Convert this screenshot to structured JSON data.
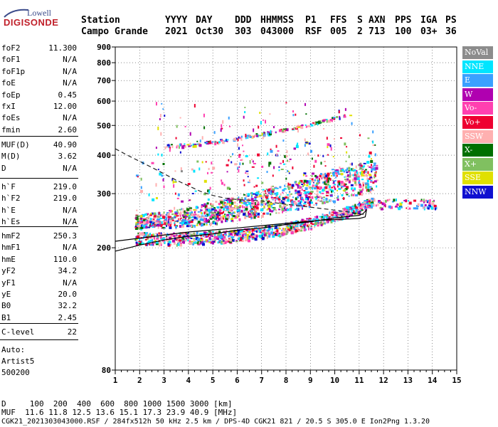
{
  "logo": {
    "line1": "Lowell",
    "line2": "DIGISONDE"
  },
  "header": {
    "station_label": "Station",
    "station_name": "Campo Grande",
    "columns": [
      {
        "label": "YYYY",
        "value": "2021"
      },
      {
        "label": "DAY",
        "value": "Oct30"
      },
      {
        "label": "DDD",
        "value": "303"
      },
      {
        "label": "HHMMSS",
        "value": "043000"
      },
      {
        "label": "P1",
        "value": "RSF"
      },
      {
        "label": "FFS",
        "value": "005"
      },
      {
        "label": "S",
        "value": "2"
      },
      {
        "label": "AXN",
        "value": "713"
      },
      {
        "label": "PPS",
        "value": "100"
      },
      {
        "label": "IGA",
        "value": "03+"
      },
      {
        "label": "PS",
        "value": "36"
      }
    ]
  },
  "params": {
    "group1": [
      {
        "name": "foF2",
        "value": "11.300"
      },
      {
        "name": "foF1",
        "value": "N/A"
      },
      {
        "name": "foF1p",
        "value": "N/A"
      },
      {
        "name": "foE",
        "value": "N/A"
      },
      {
        "name": "foEp",
        "value": "0.45"
      },
      {
        "name": "fxI",
        "value": "12.00"
      },
      {
        "name": "foEs",
        "value": "N/A"
      },
      {
        "name": "fmin",
        "value": "2.60"
      }
    ],
    "group2": [
      {
        "name": "MUF(D)",
        "value": "40.90"
      },
      {
        "name": "M(D)",
        "value": "3.62"
      },
      {
        "name": "D",
        "value": "N/A"
      }
    ],
    "group3": [
      {
        "name": "h`F",
        "value": "219.0"
      },
      {
        "name": "h`F2",
        "value": "219.0"
      },
      {
        "name": "h`E",
        "value": "N/A"
      },
      {
        "name": "h`Es",
        "value": "N/A"
      }
    ],
    "group4": [
      {
        "name": "hmF2",
        "value": "250.3"
      },
      {
        "name": "hmF1",
        "value": "N/A"
      },
      {
        "name": "hmE",
        "value": "110.0"
      },
      {
        "name": "yF2",
        "value": "34.2"
      },
      {
        "name": "yF1",
        "value": "N/A"
      },
      {
        "name": "yE",
        "value": "20.0"
      },
      {
        "name": "B0",
        "value": "32.2"
      },
      {
        "name": "B1",
        "value": "2.45"
      }
    ],
    "group5": [
      {
        "name": "C-level",
        "value": "22"
      }
    ]
  },
  "autoscaling": {
    "line1": "Auto:",
    "line2": "Artist5",
    "line3": "500200"
  },
  "legend": [
    {
      "label": "NoVal",
      "color": "#8c8c8c"
    },
    {
      "label": "NNE",
      "color": "#00e5ff"
    },
    {
      "label": "E",
      "color": "#3aa0ff"
    },
    {
      "label": "W",
      "color": "#b000b0"
    },
    {
      "label": "Vo-",
      "color": "#ff40b0"
    },
    {
      "label": "Vo+",
      "color": "#ee0030"
    },
    {
      "label": "SSW",
      "color": "#ffb0b0"
    },
    {
      "label": "X-",
      "color": "#007000"
    },
    {
      "label": "X+",
      "color": "#80c060"
    },
    {
      "label": "SSE",
      "color": "#e0e000"
    },
    {
      "label": "NNW",
      "color": "#1010d0"
    }
  ],
  "footer": {
    "d_row": "D     100  200  400  600  800 1000 1500 3000 [km]",
    "muf_row": "MUF  11.6 11.8 12.5 13.6 15.1 17.3 23.9 40.9 [MHz]",
    "info_row": "CGK21_2021303043000.RSF / 284fx512h 50 kHz 2.5 km / DPS-4D CGK21 821 / 20.5 S 305.0 E Ion2Png 1.3.20"
  },
  "chart_data": {
    "type": "scatter",
    "xlim": [
      1,
      15
    ],
    "ylim": [
      80,
      900
    ],
    "x_ticks": [
      1,
      2,
      3,
      4,
      5,
      6,
      7,
      8,
      9,
      10,
      11,
      12,
      13,
      14,
      15
    ],
    "y_ticks": [
      80,
      200,
      300,
      400,
      500,
      600,
      700,
      800,
      900
    ],
    "y_scale": "log",
    "grid": true,
    "legend_placement": "right",
    "traces": [
      {
        "name": "trace_profile",
        "style": "solid",
        "x": [
          1.0,
          2.0,
          3.0,
          4.0,
          5.0,
          6.0,
          7.0,
          8.0,
          9.0,
          10.0,
          10.6,
          11.0,
          11.15,
          11.3,
          11.25,
          11.0,
          10.5,
          9.5,
          8.0,
          6.0,
          4.0,
          2.0,
          1.0
        ],
        "y": [
          195,
          204,
          212,
          218,
          222,
          228,
          232,
          238,
          243,
          250,
          253,
          255,
          258,
          265,
          252,
          249,
          248,
          246,
          240,
          232,
          225,
          215,
          210
        ]
      },
      {
        "name": "trace_dashed",
        "style": "dashed",
        "x": [
          1.0,
          1.5,
          2.0,
          2.5,
          3.0,
          3.5,
          4.0,
          4.5,
          5.0,
          5.5,
          6.0,
          7.0,
          8.0,
          9.0,
          10.0,
          10.5,
          11.0,
          11.3
        ],
        "y": [
          420,
          400,
          382,
          365,
          348,
          332,
          318,
          305,
          296,
          290,
          287,
          284,
          277,
          271,
          265,
          262,
          258,
          256
        ]
      }
    ],
    "echo_bands": [
      {
        "name": "F_trace_low",
        "x_start": 1.8,
        "x_end": 11.6,
        "h_start": 215,
        "h_end": 285,
        "spread": 20
      },
      {
        "name": "F_spread",
        "x_start": 1.8,
        "x_end": 11.7,
        "h_start": 245,
        "h_end": 350,
        "spread": 60
      },
      {
        "name": "F_multiple",
        "x_start": 3.0,
        "x_end": 10.6,
        "h_start": 430,
        "h_end": 545,
        "spread": 10
      },
      {
        "name": "F_tail",
        "x_start": 11.2,
        "x_end": 14.1,
        "h_start": 280,
        "h_end": 280,
        "spread": 20
      }
    ]
  }
}
